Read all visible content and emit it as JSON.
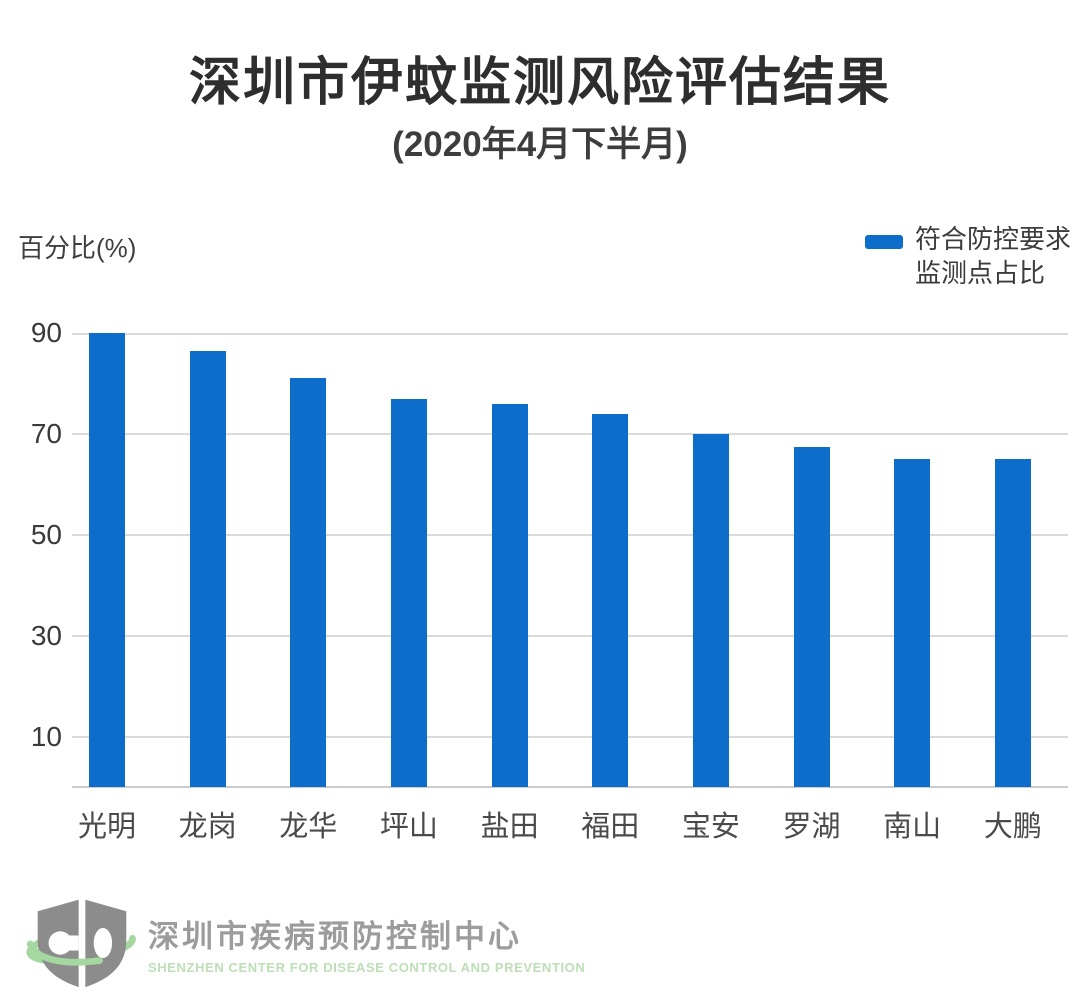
{
  "header": {
    "title": "深圳市伊蚊监测风险评估结果",
    "subtitle": "(2020年4月下半月)"
  },
  "chart": {
    "y_axis_title": "百分比(%)",
    "legend": {
      "line1": "符合防控要求",
      "line2": "监测点占比"
    }
  },
  "chart_data": {
    "type": "bar",
    "title": "深圳市伊蚊监测风险评估结果",
    "subtitle": "(2020年4月下半月)",
    "categories": [
      "光明",
      "龙岗",
      "龙华",
      "坪山",
      "盐田",
      "福田",
      "宝安",
      "罗湖",
      "南山",
      "大鹏"
    ],
    "values": [
      90,
      86.5,
      81,
      77,
      76,
      74,
      70,
      67.5,
      65,
      65
    ],
    "series_name": "符合防控要求监测点占比",
    "xlabel": "",
    "ylabel": "百分比(%)",
    "yticks": [
      90,
      70,
      50,
      30,
      10
    ],
    "ylim": [
      0,
      90
    ],
    "grid": true,
    "legend_position": "top-right",
    "bar_color": "#0c6eca"
  },
  "footer": {
    "org_name_cn": "深圳市疾病预防控制中心",
    "org_name_en": "SHENZHEN CENTER FOR DISEASE CONTROL AND PREVENTION"
  },
  "colors": {
    "bar": "#0c6eca",
    "grid": "#dadada",
    "axis": "#cccccc",
    "logo_gray": "#8c8c8c",
    "logo_green": "#a5d8a0"
  }
}
